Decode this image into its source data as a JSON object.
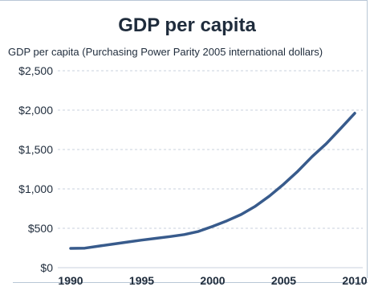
{
  "chart_data": {
    "type": "line",
    "title": "GDP per capita",
    "subtitle": "GDP per capita (Purchasing Power Parity 2005 international dollars)",
    "xlabel": "",
    "ylabel": "",
    "xlim": [
      1990,
      2010
    ],
    "ylim": [
      0,
      2500
    ],
    "x_ticks": [
      1990,
      1995,
      2000,
      2005,
      2010
    ],
    "x_tick_labels": [
      "1990",
      "1995",
      "2000",
      "2005",
      "2010"
    ],
    "y_ticks": [
      0,
      500,
      1000,
      1500,
      2000,
      2500
    ],
    "y_tick_labels": [
      "$0",
      "$500",
      "$1,000",
      "$1,500",
      "$2,000",
      "$2,500"
    ],
    "grid": "horizontal-dashed",
    "line_color": "#385b8c",
    "grid_color": "#c9d1de",
    "series": [
      {
        "x": [
          1990,
          1991,
          1992,
          1993,
          1994,
          1995,
          1996,
          1997,
          1998,
          1999,
          2000,
          2001,
          2002,
          2003,
          2004,
          2005,
          2006,
          2007,
          2008,
          2009,
          2010
        ],
        "values": [
          245,
          248,
          275,
          300,
          325,
          350,
          372,
          395,
          420,
          460,
          525,
          595,
          675,
          780,
          910,
          1060,
          1225,
          1410,
          1575,
          1765,
          1960
        ]
      }
    ]
  }
}
